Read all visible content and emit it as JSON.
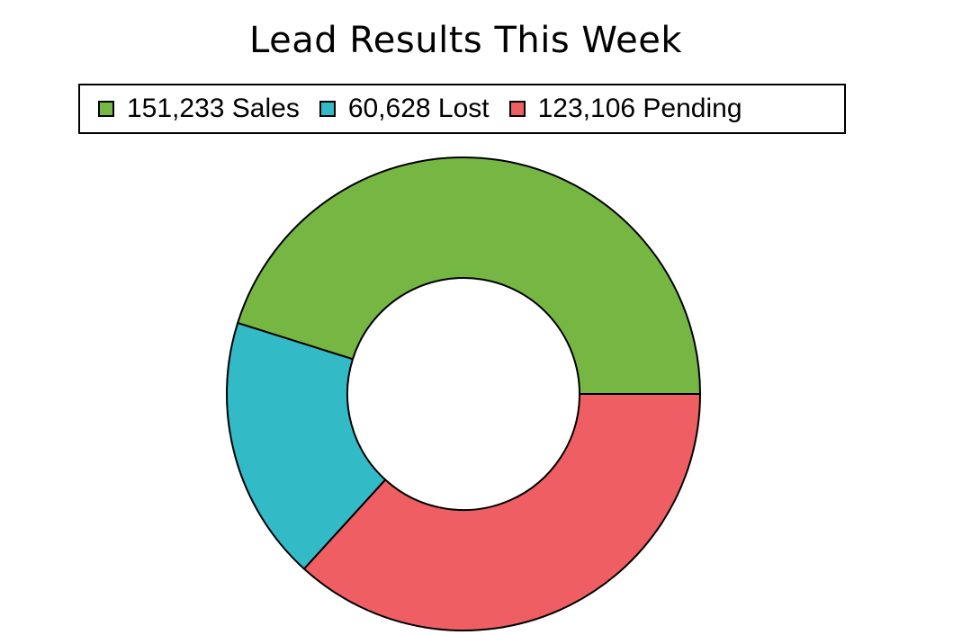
{
  "chart_data": {
    "type": "pie",
    "variant": "donut",
    "title": "Lead Results This Week",
    "categories": [
      "Sales",
      "Lost",
      "Pending"
    ],
    "values": [
      151233,
      60628,
      123106
    ],
    "legend_labels": [
      "151,233 Sales",
      "60,628 Lost",
      "123,106 Pending"
    ],
    "colors": [
      "#76b744",
      "#33bac7",
      "#ef5e63"
    ],
    "start_direction": "right",
    "direction": "counterclockwise",
    "legend_position": "top"
  }
}
